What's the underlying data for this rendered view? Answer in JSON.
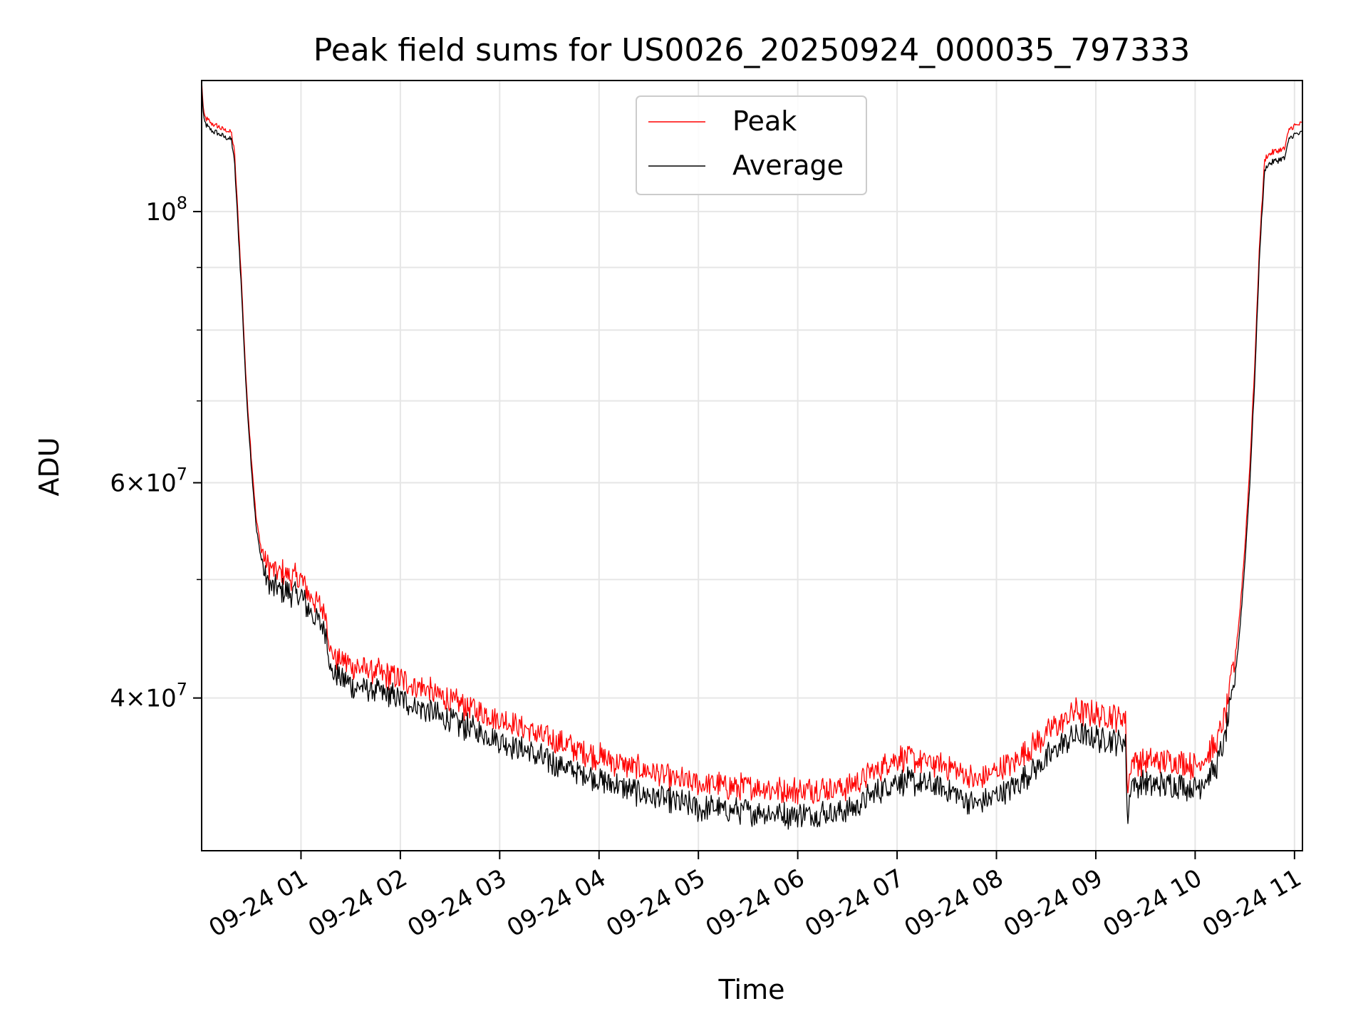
{
  "chart_data": {
    "type": "line",
    "title": "Peak field sums for US0026_20250924_000035_797333",
    "xlabel": "Time",
    "ylabel": "ADU",
    "yscale": "log",
    "ylim": [
      30000000,
      128000000
    ],
    "xlim_hours": [
      0.0,
      11.08
    ],
    "grid": true,
    "legend_position": "upper-center",
    "x_ticks": [
      {
        "hour": 1,
        "label": "09-24 01"
      },
      {
        "hour": 2,
        "label": "09-24 02"
      },
      {
        "hour": 3,
        "label": "09-24 03"
      },
      {
        "hour": 4,
        "label": "09-24 04"
      },
      {
        "hour": 5,
        "label": "09-24 05"
      },
      {
        "hour": 6,
        "label": "09-24 06"
      },
      {
        "hour": 7,
        "label": "09-24 07"
      },
      {
        "hour": 8,
        "label": "09-24 08"
      },
      {
        "hour": 9,
        "label": "09-24 09"
      },
      {
        "hour": 10,
        "label": "09-24 10"
      },
      {
        "hour": 11,
        "label": "09-24 11"
      }
    ],
    "y_ticks": [
      {
        "value": 100000000,
        "mant": "",
        "base": "10",
        "exp": "8"
      },
      {
        "value": 60000000,
        "mant": "6",
        "base": "10",
        "exp": "7"
      },
      {
        "value": 40000000,
        "mant": "4",
        "base": "10",
        "exp": "7"
      }
    ],
    "y_minor": [
      50000000,
      70000000,
      80000000,
      90000000
    ],
    "series": [
      {
        "name": "Peak",
        "color": "#ff0000",
        "x_hours": [
          0.0,
          0.02,
          0.05,
          0.1,
          0.2,
          0.3,
          0.33,
          0.4,
          0.45,
          0.5,
          0.55,
          0.6,
          0.65,
          0.7,
          1.0,
          1.1,
          1.25,
          1.3,
          1.5,
          2.0,
          2.5,
          3.0,
          3.5,
          4.0,
          4.5,
          5.0,
          5.5,
          6.0,
          6.5,
          7.0,
          7.5,
          7.8,
          8.2,
          8.6,
          8.8,
          9.0,
          9.3,
          9.32,
          9.35,
          9.4,
          9.6,
          9.8,
          10.0,
          10.2,
          10.3,
          10.4,
          10.45,
          10.5,
          10.55,
          10.6,
          10.65,
          10.7,
          10.72,
          10.8,
          10.9,
          10.95,
          11.0,
          11.08
        ],
        "values": [
          128000000,
          120000000,
          119000000,
          118000000,
          117000000,
          116000000,
          112000000,
          88000000,
          72000000,
          63000000,
          56000000,
          53000000,
          51500000,
          51000000,
          50000000,
          48500000,
          47000000,
          43500000,
          42500000,
          41500000,
          39800000,
          38500000,
          37000000,
          35800000,
          34800000,
          34000000,
          33800000,
          33600000,
          33800000,
          35800000,
          35200000,
          34200000,
          35500000,
          38000000,
          39000000,
          38800000,
          38500000,
          33000000,
          35500000,
          35500000,
          35500000,
          35500000,
          35200000,
          36500000,
          38500000,
          43000000,
          47000000,
          53000000,
          62000000,
          75000000,
          95000000,
          110000000,
          111000000,
          112000000,
          112500000,
          117000000,
          117500000,
          118000000
        ]
      },
      {
        "name": "Average",
        "color": "#000000",
        "x_hours": [
          0.0,
          0.02,
          0.05,
          0.1,
          0.2,
          0.3,
          0.33,
          0.4,
          0.45,
          0.5,
          0.55,
          0.6,
          0.65,
          0.7,
          1.0,
          1.1,
          1.25,
          1.3,
          1.5,
          2.0,
          2.5,
          3.0,
          3.5,
          4.0,
          4.5,
          5.0,
          5.5,
          6.0,
          6.5,
          7.0,
          7.5,
          7.8,
          8.2,
          8.6,
          8.8,
          9.0,
          9.3,
          9.32,
          9.35,
          9.4,
          9.6,
          9.8,
          10.0,
          10.2,
          10.3,
          10.4,
          10.45,
          10.5,
          10.55,
          10.6,
          10.65,
          10.7,
          10.72,
          10.8,
          10.9,
          10.95,
          11.0,
          11.08
        ],
        "values": [
          127000000,
          119000000,
          117500000,
          116500000,
          115500000,
          114500000,
          110000000,
          86500000,
          71000000,
          62000000,
          55000000,
          52000000,
          50000000,
          49200000,
          48500000,
          47000000,
          45500000,
          42000000,
          41000000,
          40000000,
          38300000,
          37000000,
          35500000,
          34300000,
          33300000,
          32500000,
          32300000,
          32100000,
          32300000,
          34300000,
          33700000,
          32700000,
          34000000,
          36300000,
          37300000,
          37100000,
          36800000,
          31500000,
          34000000,
          34000000,
          34000000,
          34000000,
          33700000,
          35000000,
          37000000,
          41500000,
          45500000,
          51500000,
          60000000,
          73000000,
          93000000,
          108000000,
          109000000,
          110000000,
          110500000,
          115000000,
          115500000,
          116000000
        ]
      }
    ]
  }
}
